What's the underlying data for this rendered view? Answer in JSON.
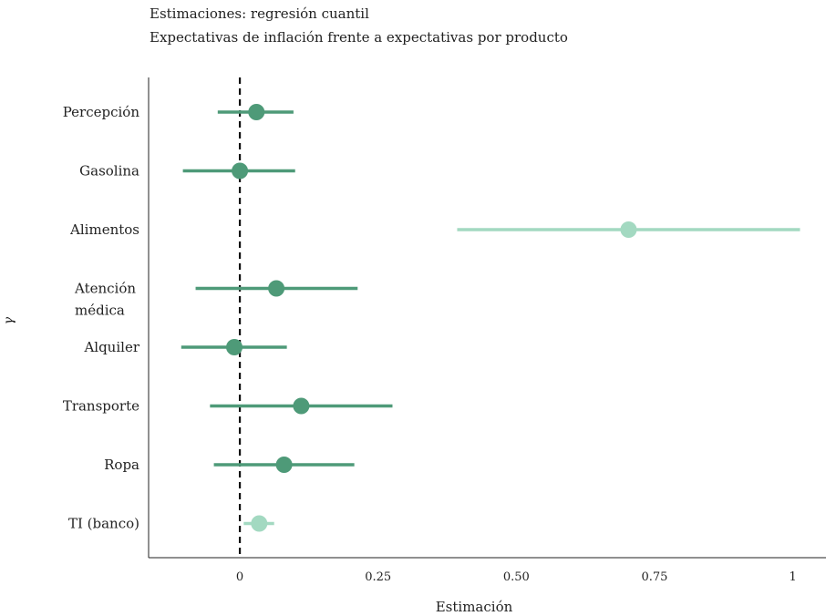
{
  "chart_data": {
    "type": "forest",
    "title": "Estimaciones: regresión cuantil",
    "subtitle": "Expectativas de inflación frente a expectativas por producto",
    "xlabel": "Estimación",
    "ylabel": "γ",
    "xlim": [
      -0.165,
      1.06
    ],
    "xticks": [
      0,
      0.25,
      0.5,
      0.75,
      1
    ],
    "xtick_labels": [
      "0",
      "0.25",
      "0.50",
      "0.75",
      "1"
    ],
    "reference_line": 0,
    "grid": false,
    "colors": {
      "main": "#4e9a78",
      "light": "#a3d9c1"
    },
    "rows": [
      {
        "label": [
          "Percepción"
        ],
        "estimate": 0.03,
        "low": -0.04,
        "high": 0.097,
        "style": "main"
      },
      {
        "label": [
          "Gasolina"
        ],
        "estimate": 0.0,
        "low": -0.103,
        "high": 0.1,
        "style": "main"
      },
      {
        "label": [
          "Alimentos"
        ],
        "estimate": 0.703,
        "low": 0.393,
        "high": 1.013,
        "style": "light"
      },
      {
        "label": [
          "Atención",
          "médica"
        ],
        "estimate": 0.066,
        "low": -0.08,
        "high": 0.213,
        "style": "main"
      },
      {
        "label": [
          "Alquiler"
        ],
        "estimate": -0.01,
        "low": -0.106,
        "high": 0.085,
        "style": "main"
      },
      {
        "label": [
          "Transporte"
        ],
        "estimate": 0.111,
        "low": -0.054,
        "high": 0.276,
        "style": "main"
      },
      {
        "label": [
          "Ropa"
        ],
        "estimate": 0.08,
        "low": -0.047,
        "high": 0.207,
        "style": "main"
      },
      {
        "label": [
          "TI (banco)"
        ],
        "estimate": 0.035,
        "low": 0.007,
        "high": 0.062,
        "style": "light"
      }
    ]
  }
}
